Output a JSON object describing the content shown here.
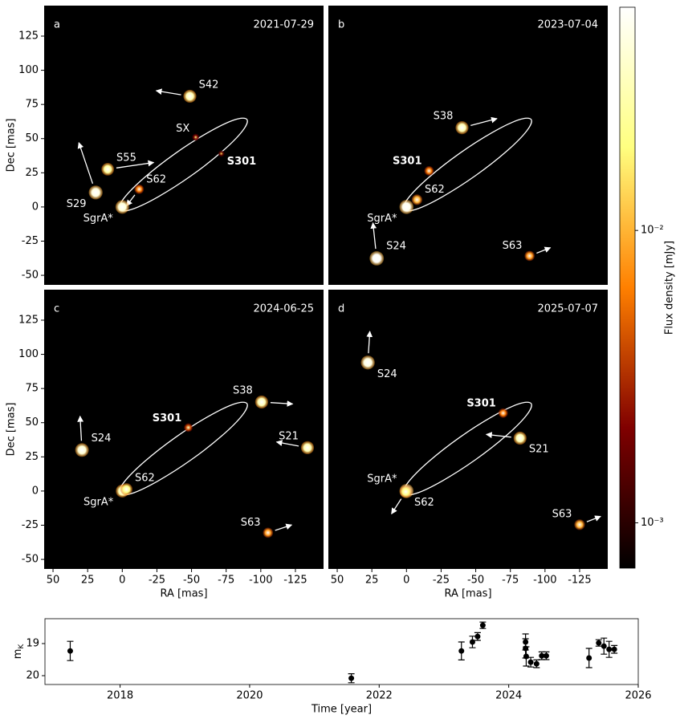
{
  "chart_data": [
    {
      "type": "image",
      "label": "a",
      "date": "2021-07-29",
      "ylabel": "Dec [mas]",
      "xlim": [
        56.4,
        -145.3
      ],
      "ylim": [
        -57,
        147.3
      ],
      "yticks": [
        -50,
        -25,
        0,
        25,
        50,
        75,
        100,
        125
      ],
      "orbit": {
        "x": [
          -90,
          -80.9,
          -62,
          -38.2,
          -16,
          -1.3,
          2,
          -7.1,
          -26,
          -49.8,
          -72,
          -86.7,
          -90
        ],
        "y": [
          64,
          63.7,
          54.5,
          39.1,
          21.5,
          6.5,
          -2,
          -1.7,
          7.5,
          22.9,
          40.5,
          55.5,
          64
        ]
      },
      "stars": [
        {
          "name": "S42",
          "x": -48.8,
          "y": 81,
          "flux": 0.03,
          "arrow": [
            18,
            3
          ],
          "label_side": "ne"
        },
        {
          "name": "SX",
          "x": -53,
          "y": 51,
          "flux": 0.002,
          "label_side": "nw"
        },
        {
          "name": "S301",
          "x": -71.5,
          "y": 39,
          "flux": 0.0015,
          "bold": true,
          "label_side": "se"
        },
        {
          "name": "S55",
          "x": 10.5,
          "y": 27.6,
          "flux": 0.025,
          "arrow": [
            -27,
            4
          ],
          "label_side": "ne"
        },
        {
          "name": "S62",
          "x": -12.2,
          "y": 13,
          "flux": 0.006,
          "arrow": [
            6,
            -8
          ],
          "label_side": "ne"
        },
        {
          "name": "S29",
          "x": 19.2,
          "y": 10.6,
          "flux": 0.045,
          "arrow": [
            10,
            30
          ],
          "label_side": "sw"
        },
        {
          "name": "SgrA*",
          "x": 0,
          "y": 0,
          "flux": 0.04,
          "label_side": "sw"
        }
      ]
    },
    {
      "type": "image",
      "label": "b",
      "date": "2023-07-04",
      "xlim": [
        56.4,
        -145.3
      ],
      "ylim": [
        -57,
        147.3
      ],
      "orbit": {
        "x": [
          -90,
          -80.9,
          -62,
          -38.2,
          -16,
          -1.3,
          2,
          -7.1,
          -26,
          -49.8,
          -72,
          -86.7,
          -90
        ],
        "y": [
          64,
          63.7,
          54.5,
          39.1,
          21.5,
          6.5,
          -2,
          -1.7,
          7.5,
          22.9,
          40.5,
          55.5,
          64
        ]
      },
      "stars": [
        {
          "name": "S38",
          "x": -40.1,
          "y": 58,
          "flux": 0.03,
          "arrow": [
            -19,
            5
          ],
          "label_side": "nw"
        },
        {
          "name": "S301",
          "x": -16.3,
          "y": 26.4,
          "flux": 0.006,
          "bold": true,
          "label_side": "nw"
        },
        {
          "name": "S62",
          "x": -7.6,
          "y": 5.3,
          "flux": 0.01,
          "label_side": "ne"
        },
        {
          "name": "SgrA*",
          "x": 0,
          "y": 0,
          "flux": 0.05,
          "label_side": "sw"
        },
        {
          "name": "S24",
          "x": 21.5,
          "y": -37.6,
          "flux": 0.055,
          "arrow": [
            2,
            19
          ],
          "label_side": "ne"
        },
        {
          "name": "S63",
          "x": -88.9,
          "y": -35.8,
          "flux": 0.008,
          "arrow": [
            -10,
            4
          ],
          "label_side": "nw"
        }
      ]
    },
    {
      "type": "image",
      "label": "c",
      "date": "2024-06-25",
      "xlabel": "RA [mas]",
      "ylabel": "Dec [mas]",
      "xlim": [
        56.4,
        -145.3
      ],
      "ylim": [
        -57,
        147.3
      ],
      "xticks": [
        50,
        25,
        0,
        -25,
        -50,
        -75,
        -100,
        -125
      ],
      "yticks": [
        -50,
        -25,
        0,
        25,
        50,
        75,
        100,
        125
      ],
      "orbit": {
        "x": [
          -90,
          -80.9,
          -62,
          -38.2,
          -16,
          -1.3,
          2,
          -7.1,
          -26,
          -49.8,
          -72,
          -86.7,
          -90
        ],
        "y": [
          64,
          63.7,
          54.5,
          39.1,
          21.5,
          6.5,
          -2,
          -1.7,
          7.5,
          22.9,
          40.5,
          55.5,
          64
        ]
      },
      "stars": [
        {
          "name": "S38",
          "x": -100.6,
          "y": 65.1,
          "flux": 0.03,
          "arrow": [
            -16,
            -1
          ],
          "label_side": "nw"
        },
        {
          "name": "S301",
          "x": -47.7,
          "y": 46.4,
          "flux": 0.004,
          "bold": true,
          "label_side": "nw"
        },
        {
          "name": "S21",
          "x": -133.7,
          "y": 31.7,
          "flux": 0.03,
          "arrow": [
            16,
            3
          ],
          "label_side": "nw"
        },
        {
          "name": "S24",
          "x": 29.1,
          "y": 30,
          "flux": 0.04,
          "arrow": [
            1,
            18
          ],
          "label_side": "ne"
        },
        {
          "name": "SgrA*",
          "x": 0,
          "y": 0,
          "flux": 0.03,
          "label_side": "sw"
        },
        {
          "name": "S62",
          "x": -3,
          "y": 1.3,
          "flux": 0.02,
          "label_side": "ne"
        },
        {
          "name": "S63",
          "x": -105.2,
          "y": -30.5,
          "flux": 0.008,
          "arrow": [
            -12,
            4
          ],
          "label_side": "nw"
        }
      ]
    },
    {
      "type": "image",
      "label": "d",
      "date": "2025-07-07",
      "xlabel": "RA [mas]",
      "xlim": [
        56.4,
        -145.3
      ],
      "ylim": [
        -57,
        147.3
      ],
      "xticks": [
        50,
        25,
        0,
        -25,
        -50,
        -75,
        -100,
        -125
      ],
      "orbit": {
        "x": [
          -90,
          -80.9,
          -62,
          -38.2,
          -16,
          -1.3,
          2,
          -7.1,
          -26,
          -49.8,
          -72,
          -86.7,
          -90
        ],
        "y": [
          64,
          63.7,
          54.5,
          39.1,
          21.5,
          6.5,
          -2,
          -1.7,
          7.5,
          22.9,
          40.5,
          55.5,
          64
        ]
      },
      "stars": [
        {
          "name": "S24",
          "x": 27.9,
          "y": 94,
          "flux": 0.045,
          "arrow": [
            -1,
            16
          ],
          "label_side": "se"
        },
        {
          "name": "S301",
          "x": -69.8,
          "y": 57,
          "flux": 0.006,
          "bold": true,
          "label_side": "nw"
        },
        {
          "name": "S21",
          "x": -82,
          "y": 38.7,
          "flux": 0.03,
          "arrow": [
            18,
            2
          ],
          "label_side": "se"
        },
        {
          "name": "SgrA*",
          "x": 0,
          "y": 0,
          "flux": 0.05,
          "label_side": "nw"
        },
        {
          "name": "S62",
          "x": 0.5,
          "y": -0.5,
          "flux": 0.02,
          "arrow": [
            7,
            -11
          ],
          "label_side": "se"
        },
        {
          "name": "S63",
          "x": -125,
          "y": -24.6,
          "flux": 0.01,
          "arrow": [
            -10,
            4
          ],
          "label_side": "nw"
        }
      ]
    },
    {
      "type": "colorbar",
      "label": "Flux density [mJy]",
      "colormap": "afmhot",
      "log": true,
      "clim": [
        0.0007,
        0.058
      ],
      "ticks": [
        {
          "value": 0.01,
          "label": "10⁻²"
        },
        {
          "value": 0.001,
          "label": "10⁻³"
        }
      ]
    },
    {
      "type": "scatter",
      "xlabel": "Time [year]",
      "ylabel": "m",
      "ylabel_subscript": "K",
      "color": "#000000",
      "xlim": [
        2016.84,
        2026.0
      ],
      "ylim": [
        20.275,
        18.225
      ],
      "xticks": [
        2018,
        2020,
        2022,
        2024,
        2026
      ],
      "yticks": [
        19,
        20
      ],
      "x": [
        2017.23,
        2021.57,
        2023.27,
        2023.44,
        2023.52,
        2023.6,
        2024.26,
        2024.26,
        2024.27,
        2024.34,
        2024.43,
        2024.51,
        2024.58,
        2025.24,
        2025.39,
        2025.47,
        2025.55,
        2025.63
      ],
      "values": [
        19.23,
        20.08,
        19.23,
        18.95,
        18.78,
        18.43,
        18.95,
        19.15,
        19.4,
        19.58,
        19.63,
        19.38,
        19.38,
        19.45,
        18.98,
        19.08,
        19.18,
        19.18
      ],
      "errors": [
        0.3,
        0.14,
        0.28,
        0.18,
        0.12,
        0.1,
        0.25,
        0.3,
        0.3,
        0.15,
        0.12,
        0.12,
        0.12,
        0.3,
        0.1,
        0.25,
        0.25,
        0.12
      ]
    }
  ]
}
